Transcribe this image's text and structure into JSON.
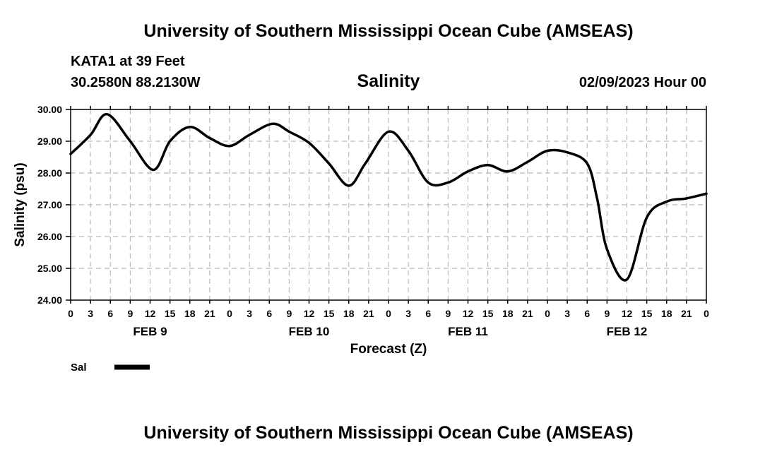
{
  "header": {
    "title": "University of Southern Mississippi Ocean Cube (AMSEAS)",
    "station": "KATA1 at 39 Feet",
    "coordinates": "30.2580N  88.2130W",
    "chart_heading": "Salinity",
    "run_time": "02/09/2023 Hour 00"
  },
  "footer": {
    "title": "University of Southern Mississippi Ocean Cube (AMSEAS)"
  },
  "colors": {
    "line": "#000000",
    "grid": "#bbbbbb",
    "frame": "#000000"
  },
  "chart_data": {
    "type": "line",
    "title": "Salinity",
    "xlabel": "Forecast (Z)",
    "ylabel": "Salinity (psu)",
    "ylim": [
      24.0,
      30.0
    ],
    "xlim_hours": [
      0,
      96
    ],
    "yticks": [
      "24.00",
      "25.00",
      "26.00",
      "27.00",
      "28.00",
      "29.00",
      "30.00"
    ],
    "yticks_values": [
      24,
      25,
      26,
      27,
      28,
      29,
      30
    ],
    "xticks": [
      "0",
      "3",
      "6",
      "9",
      "12",
      "15",
      "18",
      "21",
      "0",
      "3",
      "6",
      "9",
      "12",
      "15",
      "18",
      "21",
      "0",
      "3",
      "6",
      "9",
      "12",
      "15",
      "18",
      "21",
      "0",
      "3",
      "6",
      "9",
      "12",
      "15",
      "18",
      "21",
      "0"
    ],
    "day_labels": [
      {
        "label": "FEB 9",
        "hour": 12
      },
      {
        "label": "FEB 10",
        "hour": 36
      },
      {
        "label": "FEB 11",
        "hour": 60
      },
      {
        "label": "FEB 12",
        "hour": 84
      }
    ],
    "grid": true,
    "legend": [
      {
        "name": "Sal",
        "position": "bottom-left"
      }
    ],
    "series": [
      {
        "name": "Sal",
        "x": [
          0,
          3,
          5.5,
          9,
          12.5,
          15,
          18,
          21,
          24,
          27,
          30.5,
          33,
          36,
          39,
          42,
          44.5,
          48,
          51,
          54,
          57,
          60,
          63,
          66,
          69,
          72,
          75,
          78,
          79.5,
          81,
          84,
          87,
          90,
          93,
          96
        ],
        "y": [
          28.6,
          29.2,
          29.85,
          29.0,
          28.1,
          29.0,
          29.45,
          29.1,
          28.85,
          29.2,
          29.55,
          29.3,
          28.95,
          28.3,
          27.6,
          28.3,
          29.3,
          28.7,
          27.7,
          27.7,
          28.05,
          28.25,
          28.05,
          28.35,
          28.7,
          28.65,
          28.3,
          27.2,
          25.6,
          24.65,
          26.6,
          27.1,
          27.2,
          27.35
        ]
      }
    ]
  }
}
